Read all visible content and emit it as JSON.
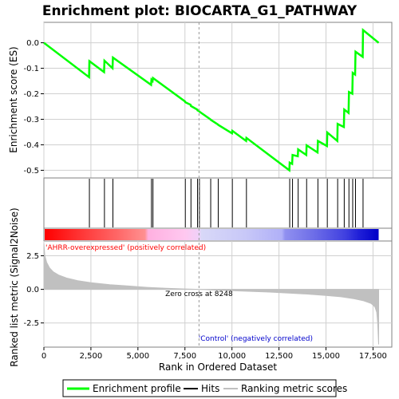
{
  "title": "Enrichment plot: BIOCARTA_G1_PATHWAY",
  "chart_data": [
    {
      "type": "line",
      "name": "enrichment-score-panel",
      "ylabel": "Enrichment score (ES)",
      "xlim": [
        0,
        18500
      ],
      "ylim": [
        -0.53,
        0.08
      ],
      "yticks": [
        0.0,
        -0.1,
        -0.2,
        -0.3,
        -0.4,
        -0.5
      ],
      "ytick_labels": [
        "0.0",
        "-0.1",
        "-0.2",
        "-0.3",
        "-0.4",
        "-0.5"
      ],
      "grid": true,
      "series": [
        {
          "name": "Enrichment profile",
          "color": "#00ff00",
          "x": [
            0,
            2400,
            2420,
            3200,
            3220,
            3650,
            3670,
            5700,
            5720,
            5780,
            5800,
            7500,
            7520,
            7800,
            7820,
            8150,
            8170,
            8250,
            8270,
            8850,
            8870,
            9250,
            9270,
            10000,
            10020,
            10750,
            10770,
            13050,
            13070,
            13200,
            13220,
            13500,
            13520,
            13950,
            13970,
            14550,
            14570,
            15050,
            15070,
            15600,
            15620,
            15950,
            15970,
            16200,
            16220,
            16400,
            16420,
            16550,
            16570,
            16950,
            16970,
            17800
          ],
          "y": [
            0.0,
            -0.135,
            -0.072,
            -0.115,
            -0.07,
            -0.1,
            -0.058,
            -0.165,
            -0.145,
            -0.15,
            -0.138,
            -0.23,
            -0.233,
            -0.243,
            -0.248,
            -0.262,
            -0.265,
            -0.268,
            -0.27,
            -0.3,
            -0.302,
            -0.32,
            -0.322,
            -0.355,
            -0.345,
            -0.385,
            -0.373,
            -0.5,
            -0.47,
            -0.475,
            -0.44,
            -0.445,
            -0.418,
            -0.44,
            -0.402,
            -0.43,
            -0.385,
            -0.405,
            -0.352,
            -0.385,
            -0.318,
            -0.33,
            -0.262,
            -0.275,
            -0.193,
            -0.2,
            -0.118,
            -0.125,
            -0.035,
            -0.055,
            0.05,
            0.0
          ]
        }
      ]
    },
    {
      "type": "hits",
      "name": "hits-panel",
      "series": [
        {
          "name": "Hits",
          "color": "#000000",
          "x": [
            2420,
            3220,
            3670,
            5720,
            5800,
            7520,
            7820,
            8170,
            8270,
            8870,
            9270,
            10020,
            10770,
            13070,
            13220,
            13520,
            13970,
            14570,
            15070,
            15620,
            15970,
            16220,
            16420,
            16570,
            16970
          ]
        }
      ]
    },
    {
      "type": "area",
      "name": "ranked-metric-panel",
      "xlabel": "Rank in Ordered Dataset",
      "ylabel": "Ranked list metric (Signal2Noise)",
      "xlim": [
        0,
        18500
      ],
      "ylim": [
        -4.3,
        3.6
      ],
      "yticks": [
        2.5,
        0.0,
        -2.5
      ],
      "ytick_labels": [
        "2.5",
        "0.0",
        "-2.5"
      ],
      "xticks": [
        0,
        2500,
        5000,
        7500,
        10000,
        12500,
        15000,
        17500
      ],
      "xtick_labels": [
        "0",
        "2,500",
        "5,000",
        "7,500",
        "10,000",
        "12,500",
        "15,000",
        "17,500"
      ],
      "grid": true,
      "zero_cross": 8248,
      "series": [
        {
          "name": "Ranking metric scores",
          "color": "#c0c0c0",
          "x": [
            0,
            50,
            150,
            300,
            500,
            800,
            1200,
            1800,
            2500,
            3500,
            4500,
            5500,
            6500,
            7500,
            8248,
            9000,
            10000,
            11000,
            12000,
            13000,
            14000,
            15000,
            15800,
            16500,
            17000,
            17400,
            17600,
            17700,
            17750,
            17800
          ],
          "y": [
            3.4,
            2.5,
            2.0,
            1.6,
            1.3,
            1.05,
            0.85,
            0.65,
            0.5,
            0.35,
            0.25,
            0.15,
            0.08,
            0.03,
            0.0,
            -0.05,
            -0.1,
            -0.15,
            -0.2,
            -0.27,
            -0.35,
            -0.45,
            -0.55,
            -0.7,
            -0.85,
            -1.05,
            -1.3,
            -1.7,
            -2.5,
            -4.1
          ]
        }
      ]
    }
  ],
  "labels": {
    "pos_label": "'AHRR-overexpressed' (positively correlated)",
    "neg_label": "'Control' (negatively correlated)",
    "zero_label": "Zero cross at 8248"
  },
  "legend": {
    "placement": "bottom",
    "items": [
      {
        "label": "Enrichment profile",
        "color": "#00ff00"
      },
      {
        "label": "Hits",
        "color": "#000000"
      },
      {
        "label": "Ranking metric scores",
        "color": "#c0c0c0"
      }
    ]
  },
  "colors": {
    "profile": "#00ff00",
    "pos_label": "#ff0000",
    "neg_label": "#0000cc",
    "grid": "#d0d0d0",
    "frame": "#808080"
  }
}
